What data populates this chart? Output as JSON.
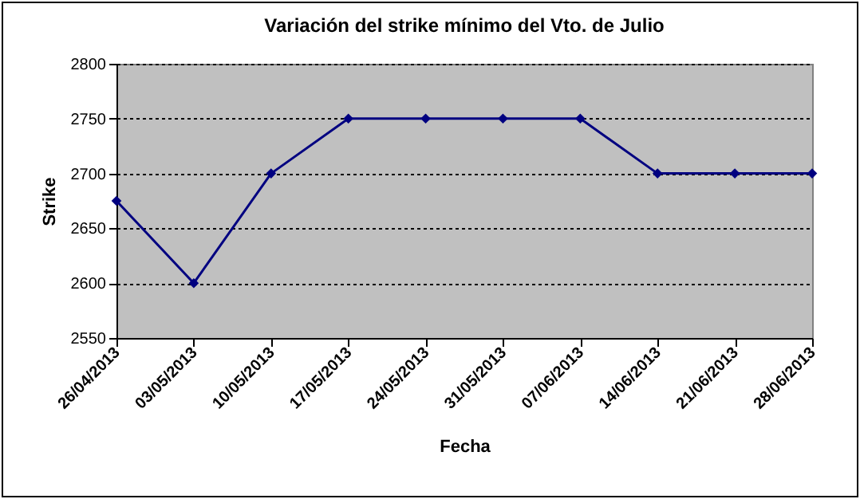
{
  "chart_data": {
    "type": "line",
    "title": "Variación del strike mínimo del Vto. de Julio",
    "xlabel": "Fecha",
    "ylabel": "Strike",
    "categories": [
      "26/04/2013",
      "03/05/2013",
      "10/05/2013",
      "17/05/2013",
      "24/05/2013",
      "31/05/2013",
      "07/06/2013",
      "14/06/2013",
      "21/06/2013",
      "28/06/2013"
    ],
    "series": [
      {
        "color": "#000080",
        "values": [
          2675,
          2600,
          2700,
          2750,
          2750,
          2750,
          2750,
          2700,
          2700,
          2700
        ]
      }
    ],
    "ylim": [
      2550,
      2800
    ],
    "yticks": [
      2550,
      2600,
      2650,
      2700,
      2750,
      2800
    ],
    "grid": "y",
    "marker": "diamond",
    "line_style": "solid"
  }
}
